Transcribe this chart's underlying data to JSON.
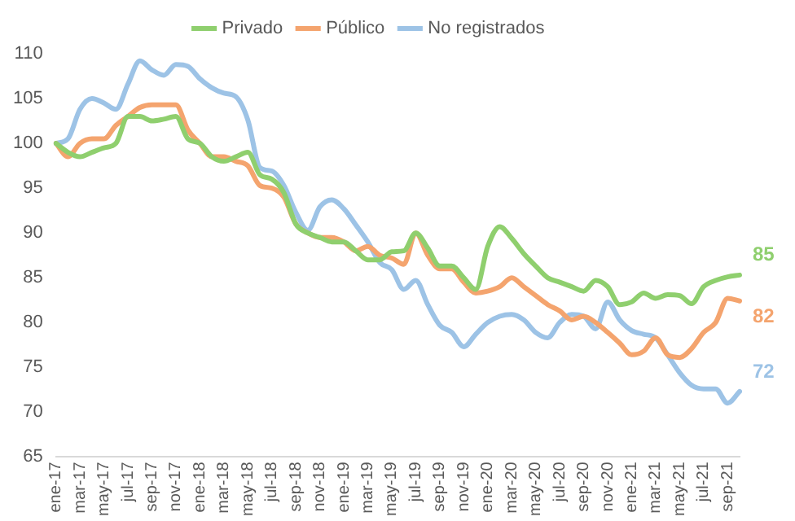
{
  "chart_data": {
    "type": "line",
    "categories": [
      "ene-17",
      null,
      "mar-17",
      null,
      "may-17",
      null,
      "jul-17",
      null,
      "sep-17",
      null,
      "nov-17",
      null,
      "ene-18",
      null,
      "mar-18",
      null,
      "may-18",
      null,
      "jul-18",
      null,
      "sep-18",
      null,
      "nov-18",
      null,
      "ene-19",
      null,
      "mar-19",
      null,
      "may-19",
      null,
      "jul-19",
      null,
      "sep-19",
      null,
      "nov-19",
      null,
      "ene-20",
      null,
      "mar-20",
      null,
      "may-20",
      null,
      "jul-20",
      null,
      "sep-20",
      null,
      "nov-20",
      null,
      "ene-21",
      null,
      "mar-21",
      null,
      "may-21",
      null,
      "jul-21",
      null,
      "sep-21",
      null
    ],
    "series": [
      {
        "name": "Privado",
        "color": "#8fcf6e",
        "values": [
          100,
          99,
          98.5,
          99,
          99.5,
          100,
          103,
          103,
          102.5,
          102.7,
          103,
          100.5,
          100,
          98.5,
          98,
          98.5,
          99,
          96.5,
          96,
          94.5,
          91,
          90,
          89.5,
          89,
          89,
          88,
          87,
          87,
          87.9,
          88,
          90,
          88.3,
          86.3,
          86.3,
          85,
          83.7,
          88.5,
          90.7,
          89.4,
          87.7,
          86.3,
          85,
          84.5,
          84,
          83.5,
          84.7,
          84,
          82,
          82.3,
          83.3,
          82.7,
          83.1,
          83,
          82.1,
          84,
          84.7,
          85.1,
          85.3
        ],
        "value_labels": [
          null,
          null,
          null,
          null,
          null,
          null,
          null,
          null,
          null,
          null,
          null,
          null,
          null,
          null,
          null,
          null,
          null,
          null,
          null,
          null,
          null,
          null,
          null,
          null,
          null,
          null,
          null,
          null,
          null,
          null,
          null,
          null,
          null,
          null,
          null,
          null,
          null,
          null,
          null,
          null,
          null,
          null,
          null,
          null,
          null,
          null,
          null,
          null,
          null,
          null,
          null,
          null,
          null,
          null,
          null,
          null,
          null,
          "85"
        ]
      },
      {
        "name": "Público",
        "color": "#f4a46e",
        "values": [
          100,
          98.5,
          100,
          100.5,
          100.5,
          102,
          103,
          104,
          104.3,
          104.3,
          104.3,
          101.5,
          100,
          98.5,
          98.5,
          98,
          97.5,
          95.3,
          95,
          94,
          91,
          90,
          89.5,
          89.5,
          89,
          88,
          88.5,
          87.5,
          87.2,
          86.5,
          90,
          87.5,
          86,
          86,
          84.5,
          83.3,
          83.5,
          84,
          85,
          84,
          83,
          82,
          81.3,
          80.3,
          80.7,
          80,
          78.9,
          77.7,
          76.4,
          76.8,
          78.3,
          76.4,
          76.1,
          77.1,
          78.9,
          80,
          82.7,
          82.4
        ],
        "value_labels": [
          null,
          null,
          null,
          null,
          null,
          null,
          null,
          null,
          null,
          null,
          null,
          null,
          null,
          null,
          null,
          null,
          null,
          null,
          null,
          null,
          null,
          null,
          null,
          null,
          null,
          null,
          null,
          null,
          null,
          null,
          null,
          null,
          null,
          null,
          null,
          null,
          null,
          null,
          null,
          null,
          null,
          null,
          null,
          null,
          null,
          null,
          null,
          null,
          null,
          null,
          null,
          null,
          null,
          null,
          null,
          null,
          null,
          "82"
        ]
      },
      {
        "name": "No registrados",
        "color": "#9dc3e6",
        "values": [
          100,
          100.5,
          103.8,
          105,
          104.5,
          103.8,
          106.6,
          109.2,
          108.2,
          107.6,
          108.8,
          108.6,
          107.2,
          106.2,
          105.6,
          105.2,
          102.6,
          97.3,
          96.9,
          95.3,
          92.3,
          90.3,
          92.9,
          93.7,
          92.7,
          90.9,
          89,
          86.7,
          85.9,
          83.7,
          84.7,
          82,
          79.7,
          78.9,
          77.3,
          78.7,
          80,
          80.7,
          80.9,
          80.3,
          78.9,
          78.3,
          80,
          80.9,
          80.7,
          79.3,
          82.3,
          80.3,
          79.1,
          78.7,
          78.3,
          76.4,
          74.4,
          73,
          72.6,
          72.6,
          71,
          72.3
        ],
        "value_labels": [
          null,
          null,
          null,
          null,
          null,
          null,
          null,
          null,
          null,
          null,
          null,
          null,
          null,
          null,
          null,
          null,
          null,
          null,
          null,
          null,
          null,
          null,
          null,
          null,
          null,
          null,
          null,
          null,
          null,
          null,
          null,
          null,
          null,
          null,
          null,
          null,
          null,
          null,
          null,
          null,
          null,
          null,
          null,
          null,
          null,
          null,
          null,
          null,
          null,
          null,
          null,
          null,
          null,
          null,
          null,
          null,
          null,
          "72"
        ]
      }
    ],
    "ylim": [
      65,
      110
    ],
    "yticks": [
      65,
      70,
      75,
      80,
      85,
      90,
      95,
      100,
      105,
      110
    ],
    "grid": false,
    "legend": "top",
    "marker": "none",
    "line_style": "solid"
  }
}
